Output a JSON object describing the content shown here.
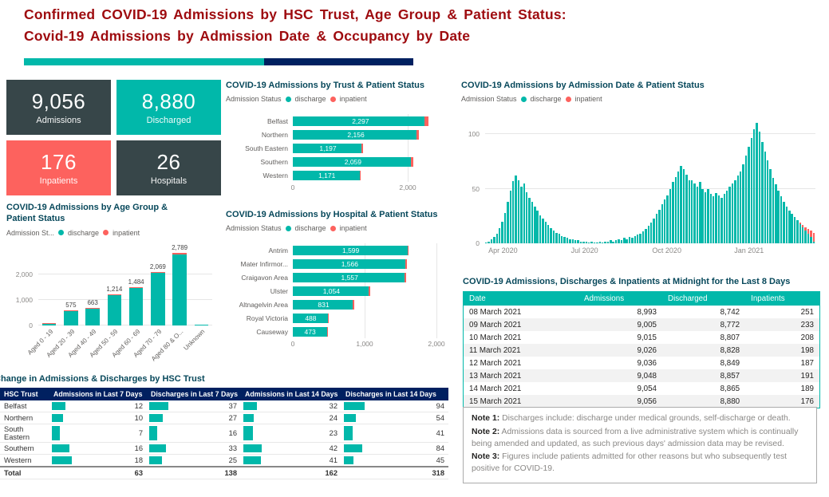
{
  "title": {
    "line1": "Confirmed COVID-19 Admissions by HSC Trust, Age Group & Patient Status:",
    "line2": "Covid-19 Admissions by Admission Date & Occupancy by Date"
  },
  "colors": {
    "teal": "#01B8AA",
    "coral": "#FD625E",
    "dark_slate": "#374649",
    "navy": "#002060",
    "title_red": "#9E0B0F",
    "panel_title": "#07485B"
  },
  "kpis": [
    {
      "value": "9,056",
      "label": "Admissions"
    },
    {
      "value": "8,880",
      "label": "Discharged"
    },
    {
      "value": "176",
      "label": "Inpatients"
    },
    {
      "value": "26",
      "label": "Hospitals"
    }
  ],
  "chart_data": [
    {
      "id": "trust",
      "type": "bar",
      "layout": "hbar",
      "title": "COVID-19 Admissions by Trust & Patient Status",
      "legend_prefix": "Admission Status",
      "legend_items": [
        "discharge",
        "inpatient"
      ],
      "categories": [
        "Belfast",
        "Northern",
        "South Eastern",
        "Southern",
        "Western"
      ],
      "series": [
        {
          "name": "discharge",
          "values": [
            2297,
            2156,
            1197,
            2059,
            1171
          ]
        },
        {
          "name": "inpatient",
          "values": [
            60,
            40,
            25,
            35,
            16
          ]
        }
      ],
      "labels": [
        "2,297",
        "2,156",
        "1,197",
        "2,059",
        "1,171"
      ],
      "xmax": 2500,
      "xticks": [
        {
          "v": 0,
          "label": "0"
        },
        {
          "v": 2000,
          "label": "2,000"
        }
      ]
    },
    {
      "id": "hospital",
      "type": "bar",
      "layout": "hbar",
      "title": "COVID-19 Admissions by Hospital & Patient Status",
      "legend_prefix": "Admission Status",
      "legend_items": [
        "discharge",
        "inpatient"
      ],
      "categories": [
        "Antrim",
        "Mater Infirmor...",
        "Craigavon Area",
        "Ulster",
        "Altnagelvin Area",
        "Royal Victoria",
        "Causeway"
      ],
      "series": [
        {
          "name": "discharge",
          "values": [
            1599,
            1566,
            1557,
            1054,
            831,
            488,
            473
          ]
        },
        {
          "name": "inpatient",
          "values": [
            15,
            20,
            25,
            20,
            25,
            10,
            8
          ]
        }
      ],
      "labels": [
        "1,599",
        "1,566",
        "1,557",
        "1,054",
        "831",
        "488",
        "473"
      ],
      "xmax": 2000,
      "xticks": [
        {
          "v": 0,
          "label": "0"
        },
        {
          "v": 1000,
          "label": "1,000"
        },
        {
          "v": 2000,
          "label": "2,000"
        }
      ]
    },
    {
      "id": "age",
      "type": "bar",
      "layout": "vbar",
      "title": "COVID-19 Admissions by Age Group & Patient Status",
      "legend_prefix": "Admission St...",
      "legend_items": [
        "discharge",
        "inpatient"
      ],
      "categories": [
        "Aged 0 - 19",
        "Aged 20 - 39",
        "Aged 40 - 49",
        "Aged 50 - 59",
        "Aged 60 - 69",
        "Aged 70 - 79",
        "Aged 80 & O...",
        "Unknown"
      ],
      "series": [
        {
          "name": "discharge",
          "values": [
            80,
            575,
            663,
            1214,
            1484,
            2069,
            2789,
            6
          ]
        },
        {
          "name": "inpatient",
          "values": [
            3,
            8,
            12,
            18,
            30,
            45,
            58,
            2
          ]
        }
      ],
      "labels": [
        "",
        "575",
        "663",
        "1,214",
        "1,484",
        "2,069",
        "2,789",
        ""
      ],
      "ymax": 3000,
      "yticks": [
        {
          "v": 0,
          "label": "0"
        },
        {
          "v": 1000,
          "label": "1,000"
        },
        {
          "v": 2000,
          "label": "2,000"
        }
      ]
    },
    {
      "id": "timeline",
      "type": "bar",
      "layout": "timeline",
      "title": "COVID-19 Admissions by Admission Date & Patient Status",
      "legend_prefix": "Admission Status",
      "legend_items": [
        "discharge",
        "inpatient"
      ],
      "x_range": [
        "Mar 2020",
        "Mar 2021"
      ],
      "values": [
        1,
        2,
        4,
        6,
        9,
        14,
        20,
        28,
        38,
        48,
        57,
        62,
        58,
        52,
        55,
        47,
        42,
        38,
        34,
        30,
        26,
        23,
        20,
        17,
        14,
        12,
        10,
        9,
        7,
        6,
        5,
        4,
        4,
        3,
        3,
        2,
        2,
        2,
        1,
        2,
        1,
        1,
        2,
        1,
        2,
        2,
        3,
        2,
        3,
        4,
        3,
        5,
        4,
        6,
        5,
        7,
        8,
        9,
        11,
        13,
        16,
        19,
        23,
        27,
        31,
        36,
        40,
        44,
        50,
        56,
        61,
        66,
        71,
        68,
        63,
        58,
        58,
        55,
        52,
        56,
        50,
        47,
        50,
        45,
        43,
        46,
        44,
        42,
        45,
        48,
        52,
        55,
        58,
        62,
        66,
        72,
        80,
        88,
        96,
        104,
        110,
        102,
        93,
        84,
        76,
        68,
        60,
        54,
        48,
        43,
        38,
        34,
        30,
        27,
        24,
        21,
        19,
        17,
        15,
        13,
        12,
        10
      ],
      "inpatient_last": [
        1,
        2,
        3,
        4,
        6,
        8
      ],
      "ymax": 115,
      "yticks": [
        {
          "v": 0,
          "label": "0"
        },
        {
          "v": 50,
          "label": "50"
        },
        {
          "v": 100,
          "label": "100"
        }
      ],
      "xticks": [
        {
          "pos": 0.054,
          "label": "Apr 2020"
        },
        {
          "pos": 0.301,
          "label": "Jul 2020"
        },
        {
          "pos": 0.55,
          "label": "Oct 2020"
        },
        {
          "pos": 0.799,
          "label": "Jan 2021"
        }
      ]
    }
  ],
  "trust_table": {
    "title": "Change in Admissions & Discharges by HSC Trust",
    "columns": [
      "HSC Trust",
      "Admissions in Last 7 Days",
      "Discharges in Last 7 Days",
      "Admissions in Last 14 Days",
      "Discharges in Last 14 Days"
    ],
    "rows": [
      [
        "Belfast",
        12,
        37,
        32,
        94
      ],
      [
        "Northern",
        10,
        27,
        24,
        54
      ],
      [
        "South Eastern",
        7,
        16,
        23,
        41
      ],
      [
        "Southern",
        16,
        33,
        42,
        84
      ],
      [
        "Western",
        18,
        25,
        41,
        45
      ]
    ],
    "total": [
      "Total",
      63,
      138,
      162,
      318
    ]
  },
  "last8_table": {
    "title": "COVID-19 Admissions, Discharges & Inpatients at Midnight for the Last 8 Days",
    "columns": [
      "Date",
      "Admissions",
      "Discharged",
      "Inpatients"
    ],
    "rows": [
      [
        "08 March 2021",
        "8,993",
        "8,742",
        "251"
      ],
      [
        "09 March 2021",
        "9,005",
        "8,772",
        "233"
      ],
      [
        "10 March 2021",
        "9,015",
        "8,807",
        "208"
      ],
      [
        "11 March 2021",
        "9,026",
        "8,828",
        "198"
      ],
      [
        "12 March 2021",
        "9,036",
        "8,849",
        "187"
      ],
      [
        "13 March 2021",
        "9,048",
        "8,857",
        "191"
      ],
      [
        "14 March 2021",
        "9,054",
        "8,865",
        "189"
      ],
      [
        "15 March 2021",
        "9,056",
        "8,880",
        "176"
      ]
    ]
  },
  "notes": [
    {
      "label": "Note 1:",
      "text": "Discharges include: discharge under medical grounds, self-discharge or death."
    },
    {
      "label": "Note 2:",
      "text": "Admissions data is sourced from a live administrative system which is continually being amended and updated, as such previous days' admission data may be revised."
    },
    {
      "label": "Note 3:",
      "text": "Figures include patients admitted for other reasons but who subsequently test positive for COVID-19."
    }
  ]
}
